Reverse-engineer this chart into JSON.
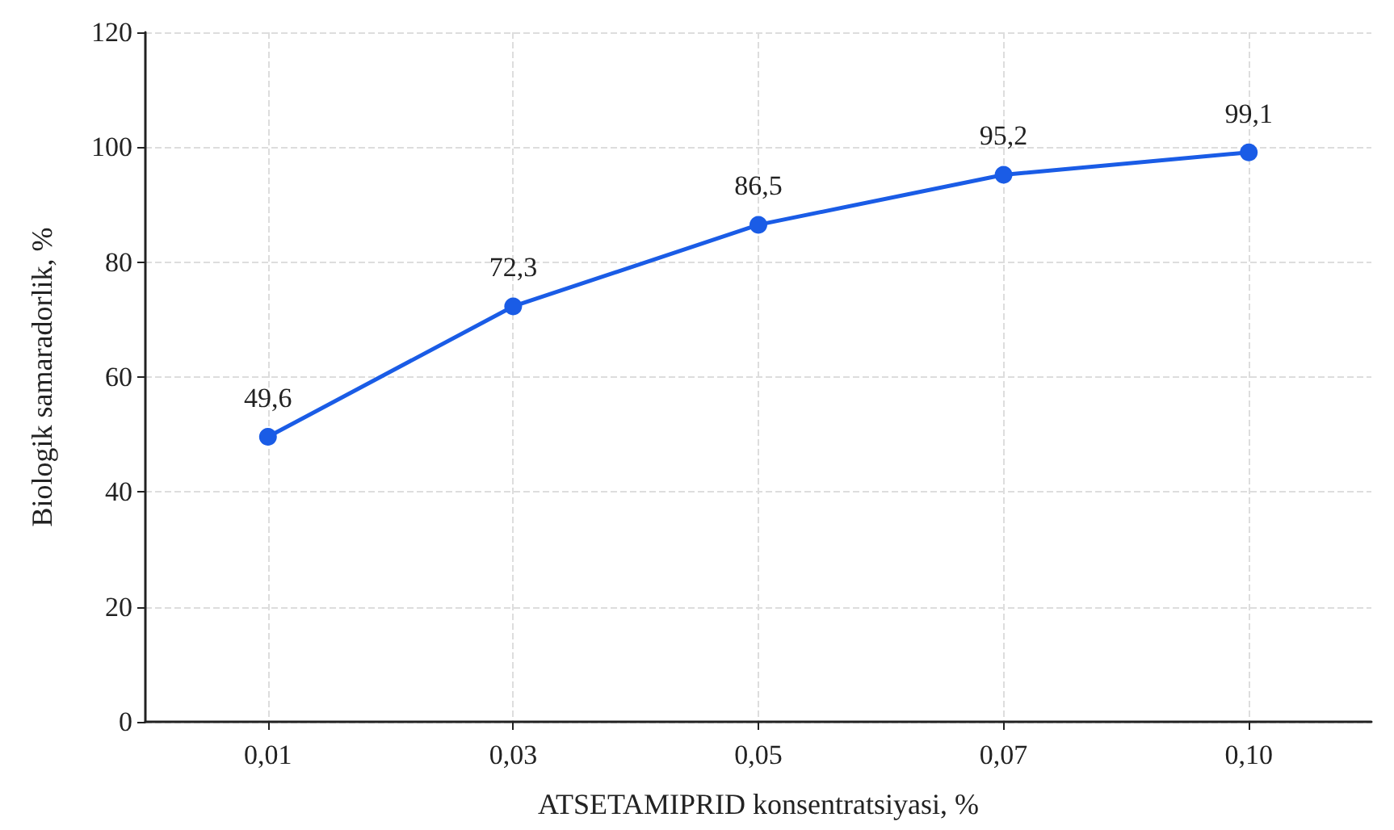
{
  "chart_data": {
    "type": "line",
    "xlabel": "ATSETAMIPRID konsentratsiyasi, %",
    "ylabel": "Biologik samaradorlik, %",
    "categories": [
      "0,01",
      "0,03",
      "0,05",
      "0,07",
      "0,10"
    ],
    "series": [
      {
        "color": "#1a5ce6",
        "values": [
          49.6,
          72.3,
          86.5,
          95.2,
          99.1
        ],
        "value_labels": [
          "49,6",
          "72,3",
          "86,5",
          "95,2",
          "99,1"
        ]
      }
    ],
    "ylim": [
      0,
      120
    ],
    "yticks": [
      0,
      20,
      40,
      60,
      80,
      100,
      120
    ],
    "grid": true,
    "marker": "circle",
    "line_style": "solid"
  }
}
